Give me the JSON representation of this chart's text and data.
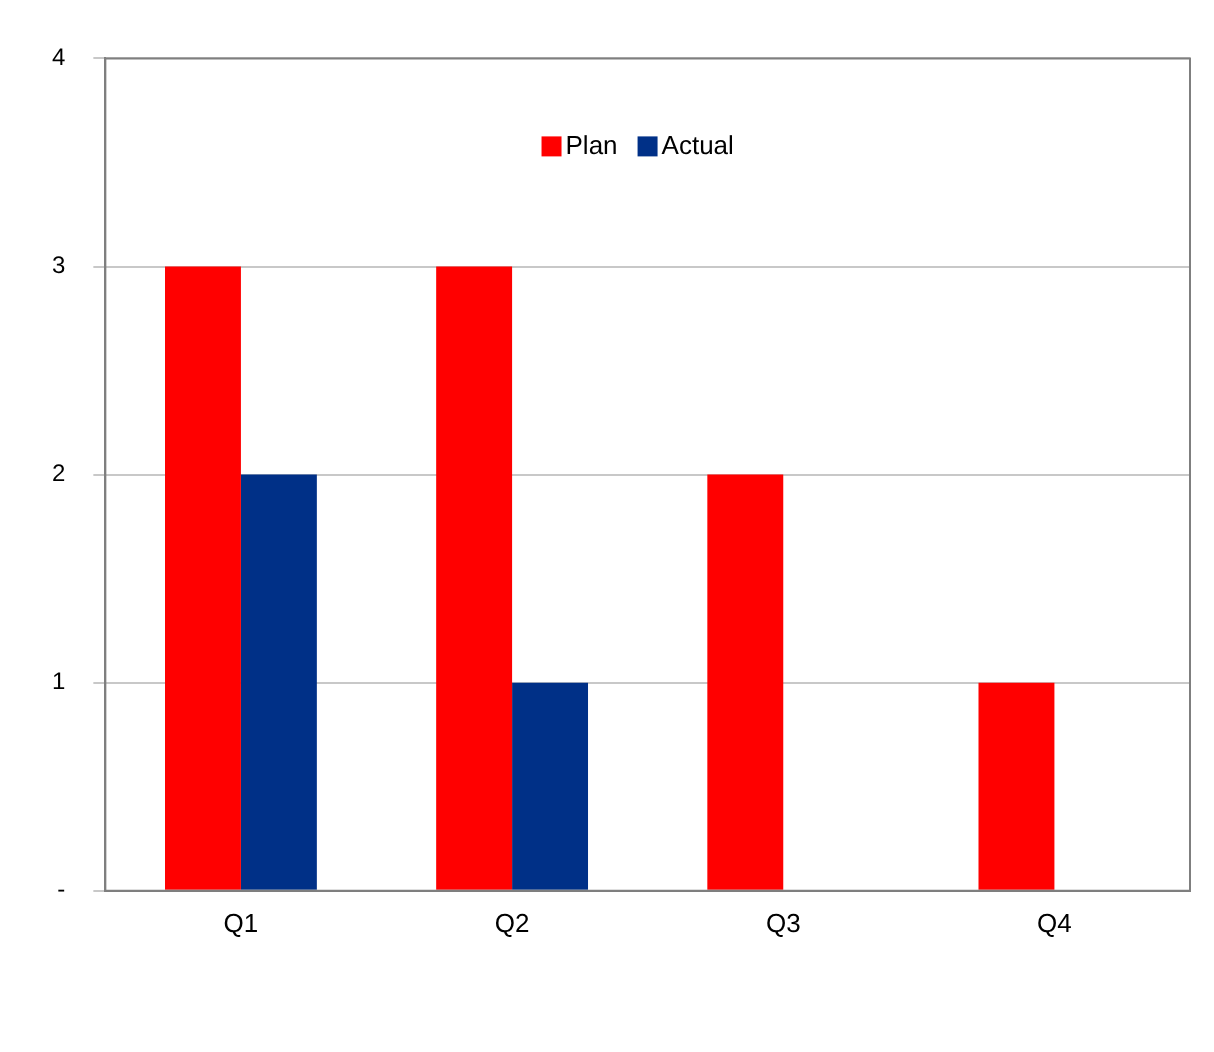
{
  "chart_data": {
    "type": "bar",
    "categories": [
      "Q1",
      "Q2",
      "Q3",
      "Q4"
    ],
    "series": [
      {
        "name": "Plan",
        "color": "#ff0000",
        "values": [
          3,
          3,
          2,
          1
        ]
      },
      {
        "name": "Actual",
        "color": "#003087",
        "values": [
          2,
          1,
          null,
          null
        ]
      }
    ],
    "ylim": [
      0,
      4
    ],
    "yticks": [
      {
        "value": 0,
        "label": "-"
      },
      1,
      2,
      3,
      4
    ],
    "grid": "y",
    "legend": "top"
  }
}
